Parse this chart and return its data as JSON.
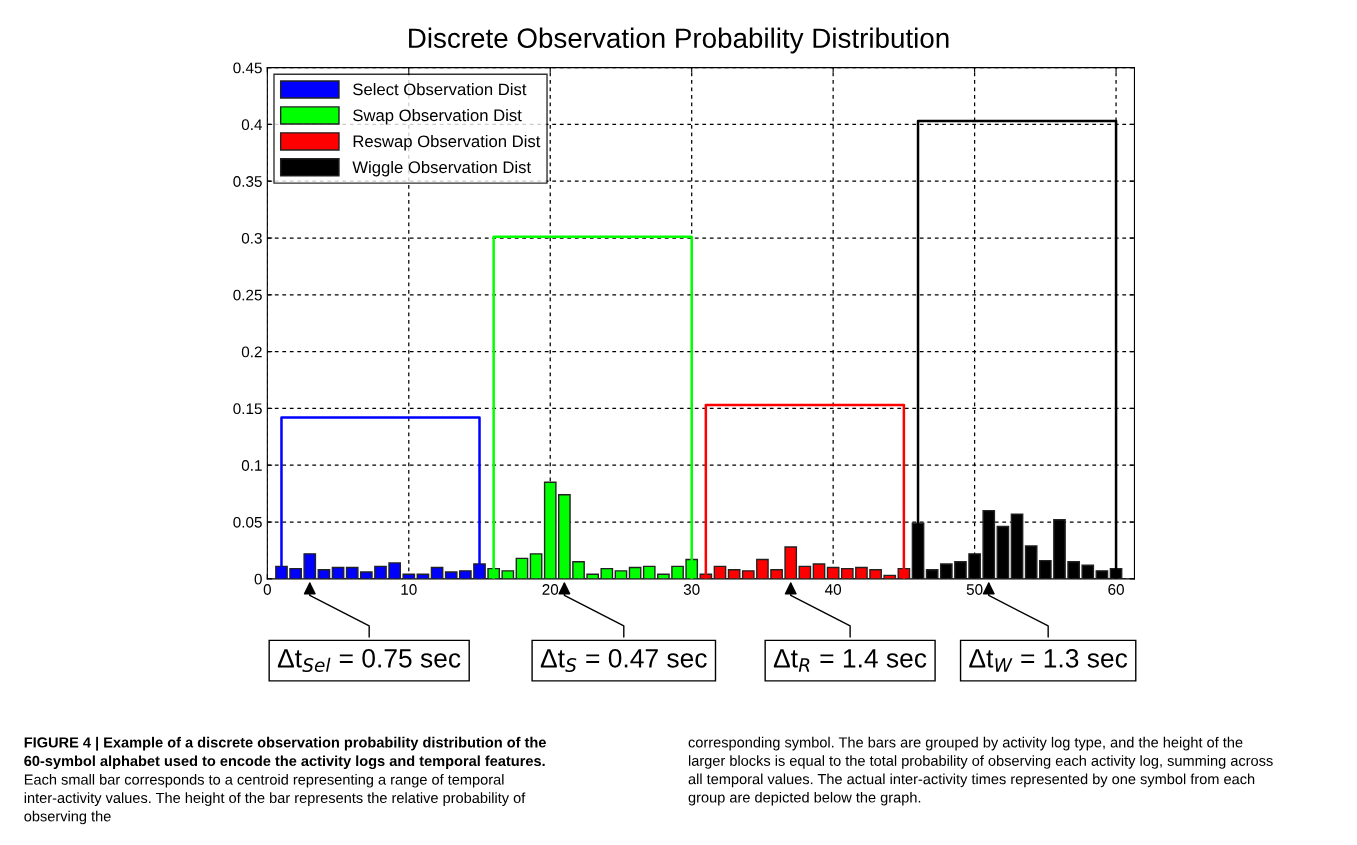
{
  "chart_data": {
    "type": "bar",
    "title": "Discrete Observation Probability Distribution",
    "xlim": [
      0,
      61.3
    ],
    "xticks": [
      0,
      10,
      20,
      30,
      40,
      50,
      60
    ],
    "ylim": [
      0,
      0.45
    ],
    "yticks": [
      0,
      0.05,
      0.1,
      0.15,
      0.2,
      0.25,
      0.3,
      0.35,
      0.4,
      0.45
    ],
    "grid": true,
    "legend": "top left",
    "series": [
      {
        "name": "Select Observation Dist",
        "color": "#0000ff",
        "x": [
          1,
          2,
          3,
          4,
          5,
          6,
          7,
          8,
          9,
          10,
          11,
          12,
          13,
          14,
          15
        ],
        "values": [
          0.011,
          0.009,
          0.022,
          0.008,
          0.01,
          0.01,
          0.006,
          0.011,
          0.014,
          0.004,
          0.004,
          0.01,
          0.006,
          0.007,
          0.013
        ]
      },
      {
        "name": "Swap Observation Dist",
        "color": "#00ff00",
        "x": [
          16,
          17,
          18,
          19,
          20,
          21,
          22,
          23,
          24,
          25,
          26,
          27,
          28,
          29,
          30
        ],
        "values": [
          0.009,
          0.007,
          0.018,
          0.022,
          0.085,
          0.074,
          0.015,
          0.004,
          0.009,
          0.007,
          0.01,
          0.011,
          0.004,
          0.011,
          0.017
        ]
      },
      {
        "name": "Reswap Observation Dist",
        "color": "#ff0000",
        "x": [
          31,
          32,
          33,
          34,
          35,
          36,
          37,
          38,
          39,
          40,
          41,
          42,
          43,
          44,
          45
        ],
        "values": [
          0.004,
          0.011,
          0.008,
          0.007,
          0.017,
          0.008,
          0.028,
          0.011,
          0.013,
          0.01,
          0.009,
          0.01,
          0.008,
          0.003,
          0.009
        ]
      },
      {
        "name": "Wiggle Observation Dist",
        "color": "#000000",
        "x": [
          46,
          47,
          48,
          49,
          50,
          51,
          52,
          53,
          54,
          55,
          56,
          57,
          58,
          59,
          60
        ],
        "values": [
          0.049,
          0.008,
          0.013,
          0.015,
          0.022,
          0.06,
          0.046,
          0.057,
          0.029,
          0.016,
          0.052,
          0.015,
          0.012,
          0.007,
          0.009
        ]
      },
      {
        "type": "line",
        "color": "#0000ff",
        "x": [
          1,
          1,
          15,
          15
        ],
        "values": [
          0,
          0.142,
          0.142,
          0
        ]
      },
      {
        "type": "line",
        "color": "#00ff00",
        "x": [
          16,
          16,
          30,
          30
        ],
        "values": [
          0,
          0.301,
          0.301,
          0
        ]
      },
      {
        "type": "line",
        "color": "#ff0000",
        "x": [
          31,
          31,
          45,
          45
        ],
        "values": [
          0,
          0.153,
          0.153,
          0
        ]
      },
      {
        "type": "line",
        "color": "#000000",
        "x": [
          46,
          46,
          60,
          60
        ],
        "values": [
          0,
          0.403,
          0.403,
          0
        ]
      }
    ],
    "annotations": [
      {
        "text": "Δt$_{Sel}$ = 0.75 sec",
        "x": 3,
        "y": 0
      },
      {
        "text": "Δt$_{S}$ = 0.47 sec",
        "x": 21,
        "y": 0
      },
      {
        "text": "Δt$_{R}$ = 1.4 sec",
        "x": 37,
        "y": 0
      },
      {
        "text": "Δt$_{W}$ = 1.3 sec",
        "x": 51,
        "y": 0
      },
      "FIGURE 4 | Example of a discrete observation probability distribution of the 60-symbol alphabet used to encode the activity logs and temporal features.",
      "Each small bar corresponds to a centroid representing a range of temporal inter-activity values. The height of the bar represents the relative probability of observing the",
      "corresponding symbol. The bars are grouped by activity log type, and the height of the larger blocks is equal to the total probability of observing each activity log, summing across all temporal values. The actual inter-activity times represented by one symbol from each group are depicted below the graph."
    ]
  }
}
